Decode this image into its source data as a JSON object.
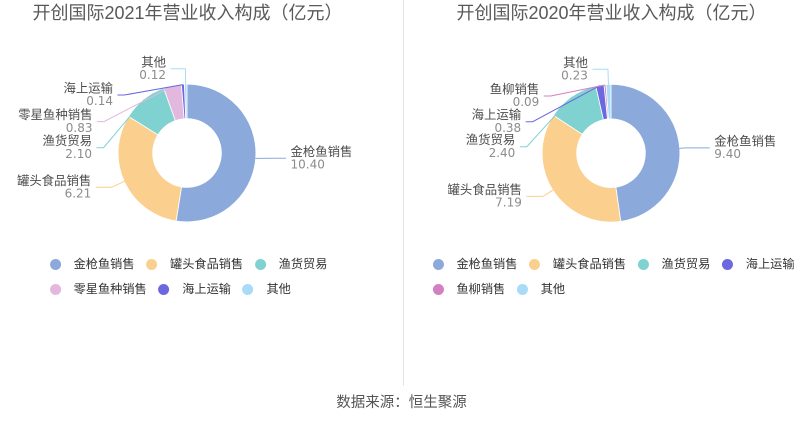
{
  "footer": {
    "text": "数据来源：恒生聚源"
  },
  "chart_data": [
    {
      "type": "pie",
      "title": "开创国际2021年营业收入构成（亿元）",
      "unit": "亿元",
      "legend_position": "bottom",
      "series": [
        {
          "name": "金枪鱼销售",
          "value": 10.4,
          "value_label": "10.40",
          "color": "#8ca9db"
        },
        {
          "name": "罐头食品销售",
          "value": 6.21,
          "value_label": "6.21",
          "color": "#fbcf8d"
        },
        {
          "name": "渔货贸易",
          "value": 2.1,
          "value_label": "2.10",
          "color": "#80d2d0"
        },
        {
          "name": "零星鱼种销售",
          "value": 0.83,
          "value_label": "0.83",
          "color": "#e3b8de"
        },
        {
          "name": "海上运输",
          "value": 0.14,
          "value_label": "0.14",
          "color": "#6b68e0"
        },
        {
          "name": "其他",
          "value": 0.12,
          "value_label": "0.12",
          "color": "#a8dbf7"
        }
      ],
      "legend_rows": [
        [
          "金枪鱼销售",
          "罐头食品销售",
          "渔货贸易"
        ],
        [
          "零星鱼种销售",
          "海上运输",
          "其他"
        ]
      ]
    },
    {
      "type": "pie",
      "title": "开创国际2020年营业收入构成（亿元）",
      "unit": "亿元",
      "legend_position": "bottom",
      "series": [
        {
          "name": "金枪鱼销售",
          "value": 9.4,
          "value_label": "9.40",
          "color": "#8ca9db"
        },
        {
          "name": "罐头食品销售",
          "value": 7.19,
          "value_label": "7.19",
          "color": "#fbcf8d"
        },
        {
          "name": "渔货贸易",
          "value": 2.4,
          "value_label": "2.40",
          "color": "#80d2d0"
        },
        {
          "name": "海上运输",
          "value": 0.38,
          "value_label": "0.38",
          "color": "#6b68e0"
        },
        {
          "name": "鱼柳销售",
          "value": 0.09,
          "value_label": "0.09",
          "color": "#d47fc2"
        },
        {
          "name": "其他",
          "value": 0.23,
          "value_label": "0.23",
          "color": "#a8dbf7"
        }
      ],
      "legend_rows": [
        [
          "金枪鱼销售",
          "罐头食品销售",
          "渔货贸易",
          "海上运输"
        ],
        [
          "鱼柳销售",
          "其他"
        ]
      ]
    }
  ]
}
